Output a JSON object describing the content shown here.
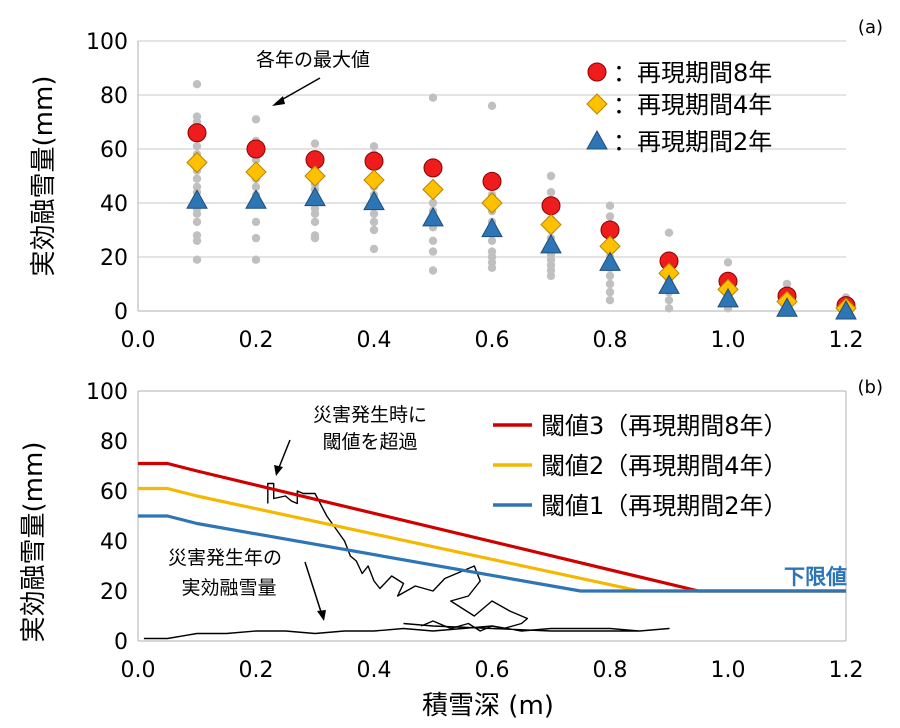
{
  "chart_data": [
    {
      "type": "scatter",
      "panel_label": "(a)",
      "title": "",
      "xlabel": "",
      "ylabel": "実効融雪量(mm)",
      "xlim": [
        0.0,
        1.2
      ],
      "ylim": [
        0,
        100
      ],
      "x_ticks": [
        "0.0",
        "0.2",
        "0.4",
        "0.6",
        "0.8",
        "1.0",
        "1.2"
      ],
      "y_ticks": [
        "0",
        "20",
        "40",
        "60",
        "80",
        "100"
      ],
      "grid": "horizontal",
      "legend_position": "top-right",
      "annotation": "各年の最大値",
      "series": [
        {
          "name": "：再現期間8年",
          "color": "#ee1c1c",
          "marker": "circle",
          "x": [
            0.1,
            0.2,
            0.3,
            0.4,
            0.5,
            0.6,
            0.7,
            0.8,
            0.9,
            1.0,
            1.1,
            1.2
          ],
          "values": [
            66,
            60,
            56,
            55.5,
            53,
            48,
            39,
            30,
            18.5,
            11,
            5.5,
            2
          ]
        },
        {
          "name": "：再現期間4年",
          "color": "#ffc000",
          "marker": "diamond",
          "x": [
            0.1,
            0.2,
            0.3,
            0.4,
            0.5,
            0.6,
            0.7,
            0.8,
            0.9,
            1.0,
            1.1,
            1.2
          ],
          "values": [
            55,
            51.5,
            50,
            48.5,
            45,
            40,
            32,
            24,
            14,
            8,
            3.5,
            1
          ]
        },
        {
          "name": "：再現期間2年",
          "color": "#2e75b6",
          "marker": "triangle",
          "x": [
            0.1,
            0.2,
            0.3,
            0.4,
            0.5,
            0.6,
            0.7,
            0.8,
            0.9,
            1.0,
            1.1,
            1.2
          ],
          "values": [
            41,
            41,
            42,
            40.5,
            34.5,
            30.5,
            24.5,
            18,
            9.5,
            4.5,
            1,
            0
          ]
        }
      ],
      "annual_max_points": [
        [
          0.1,
          84
        ],
        [
          0.1,
          72
        ],
        [
          0.1,
          70
        ],
        [
          0.1,
          64
        ],
        [
          0.1,
          61
        ],
        [
          0.1,
          58
        ],
        [
          0.1,
          52
        ],
        [
          0.1,
          49
        ],
        [
          0.1,
          46
        ],
        [
          0.1,
          44
        ],
        [
          0.1,
          38
        ],
        [
          0.1,
          36
        ],
        [
          0.1,
          33
        ],
        [
          0.1,
          28
        ],
        [
          0.1,
          26
        ],
        [
          0.1,
          19
        ],
        [
          0.2,
          71
        ],
        [
          0.2,
          63
        ],
        [
          0.2,
          56
        ],
        [
          0.2,
          53
        ],
        [
          0.2,
          49
        ],
        [
          0.2,
          46
        ],
        [
          0.2,
          43
        ],
        [
          0.2,
          40
        ],
        [
          0.2,
          33
        ],
        [
          0.2,
          27
        ],
        [
          0.2,
          19
        ],
        [
          0.3,
          62
        ],
        [
          0.3,
          58
        ],
        [
          0.3,
          53
        ],
        [
          0.3,
          47
        ],
        [
          0.3,
          45
        ],
        [
          0.3,
          43
        ],
        [
          0.3,
          38
        ],
        [
          0.3,
          36
        ],
        [
          0.3,
          33
        ],
        [
          0.3,
          28
        ],
        [
          0.3,
          27
        ],
        [
          0.4,
          61
        ],
        [
          0.4,
          58
        ],
        [
          0.4,
          50
        ],
        [
          0.4,
          46
        ],
        [
          0.4,
          43
        ],
        [
          0.4,
          39
        ],
        [
          0.4,
          36
        ],
        [
          0.4,
          33
        ],
        [
          0.4,
          30
        ],
        [
          0.4,
          23
        ],
        [
          0.5,
          79
        ],
        [
          0.5,
          51
        ],
        [
          0.5,
          45
        ],
        [
          0.5,
          40
        ],
        [
          0.5,
          37
        ],
        [
          0.5,
          33
        ],
        [
          0.5,
          31
        ],
        [
          0.5,
          26
        ],
        [
          0.5,
          22
        ],
        [
          0.5,
          15
        ],
        [
          0.6,
          76
        ],
        [
          0.6,
          50
        ],
        [
          0.6,
          43
        ],
        [
          0.6,
          37
        ],
        [
          0.6,
          33
        ],
        [
          0.6,
          29
        ],
        [
          0.6,
          26
        ],
        [
          0.6,
          22
        ],
        [
          0.6,
          20
        ],
        [
          0.6,
          18
        ],
        [
          0.6,
          16
        ],
        [
          0.7,
          50
        ],
        [
          0.7,
          44
        ],
        [
          0.7,
          38
        ],
        [
          0.7,
          34
        ],
        [
          0.7,
          30
        ],
        [
          0.7,
          27
        ],
        [
          0.7,
          24
        ],
        [
          0.7,
          21
        ],
        [
          0.7,
          19
        ],
        [
          0.7,
          17
        ],
        [
          0.7,
          15
        ],
        [
          0.7,
          13
        ],
        [
          0.8,
          39
        ],
        [
          0.8,
          35
        ],
        [
          0.8,
          28
        ],
        [
          0.8,
          23
        ],
        [
          0.8,
          20
        ],
        [
          0.8,
          16
        ],
        [
          0.8,
          13
        ],
        [
          0.8,
          10
        ],
        [
          0.8,
          7
        ],
        [
          0.8,
          4
        ],
        [
          0.9,
          29
        ],
        [
          0.9,
          20
        ],
        [
          0.9,
          15
        ],
        [
          0.9,
          11
        ],
        [
          0.9,
          7
        ],
        [
          0.9,
          4
        ],
        [
          0.9,
          1
        ],
        [
          1.0,
          18
        ],
        [
          1.0,
          13
        ],
        [
          1.0,
          9
        ],
        [
          1.0,
          6
        ],
        [
          1.0,
          3
        ],
        [
          1.0,
          1
        ],
        [
          1.1,
          10
        ],
        [
          1.1,
          7
        ],
        [
          1.1,
          5
        ],
        [
          1.1,
          3
        ],
        [
          1.1,
          1
        ],
        [
          1.2,
          5
        ],
        [
          1.2,
          3
        ],
        [
          1.2,
          1
        ]
      ]
    },
    {
      "type": "line",
      "panel_label": "(b)",
      "title": "",
      "xlabel": "積雪深 (m)",
      "ylabel": "実効融雪量(mm)",
      "xlim": [
        0.0,
        1.2
      ],
      "ylim": [
        0,
        100
      ],
      "x_ticks": [
        "0.0",
        "0.2",
        "0.4",
        "0.6",
        "0.8",
        "1.0",
        "1.2"
      ],
      "y_ticks": [
        "0",
        "20",
        "40",
        "60",
        "80",
        "100"
      ],
      "grid": "none",
      "legend_position": "top-right",
      "annotations": [
        "災害発生時に",
        "閾値を超過",
        "災害発生年の",
        "実効融雪量",
        "下限値"
      ],
      "series": [
        {
          "name": "閾値3（再現期間8年）",
          "color": "#d00000",
          "x": [
            0.0,
            0.05,
            0.1,
            0.95,
            1.2
          ],
          "values": [
            71,
            71,
            68,
            20,
            20
          ]
        },
        {
          "name": "閾値2（再現期間4年）",
          "color": "#f5b800",
          "x": [
            0.0,
            0.05,
            0.1,
            0.85,
            1.2
          ],
          "values": [
            61,
            61,
            58,
            20,
            20
          ]
        },
        {
          "name": "閾値1（再現期間2年）",
          "color": "#2e75b6",
          "x": [
            0.0,
            0.05,
            0.1,
            0.75,
            1.2
          ],
          "values": [
            50,
            50,
            47,
            20,
            20
          ]
        },
        {
          "name": "",
          "color": "#000000",
          "x": [
            0.01,
            0.05,
            0.1,
            0.15,
            0.2,
            0.25,
            0.3,
            0.35,
            0.4,
            0.45,
            0.5,
            0.55,
            0.6,
            0.65,
            0.7,
            0.75,
            0.8,
            0.85,
            0.9,
            0.85,
            0.7,
            0.6,
            0.5,
            0.45
          ],
          "values": [
            1,
            1,
            3,
            3,
            4,
            4,
            3,
            4,
            4,
            5,
            4,
            5,
            6,
            4,
            5,
            5,
            5,
            4,
            5,
            4,
            4,
            5,
            6,
            7
          ]
        },
        {
          "name": "",
          "color": "#000000",
          "x": [
            0.22,
            0.22,
            0.23,
            0.23,
            0.25,
            0.26,
            0.27,
            0.27,
            0.28,
            0.3,
            0.32,
            0.35,
            0.36,
            0.37,
            0.38,
            0.39,
            0.4,
            0.41,
            0.43,
            0.45,
            0.44,
            0.47,
            0.5,
            0.52,
            0.55,
            0.57,
            0.58,
            0.56,
            0.53,
            0.55,
            0.57,
            0.6,
            0.63,
            0.66,
            0.65,
            0.62,
            0.6,
            0.58,
            0.56,
            0.53,
            0.5,
            0.48
          ],
          "values": [
            55,
            63,
            63,
            57,
            58,
            56,
            55,
            60,
            59,
            59,
            50,
            40,
            34,
            32,
            27,
            30,
            24,
            21,
            26,
            23,
            18,
            22,
            20,
            25,
            28,
            30,
            24,
            18,
            16,
            13,
            10,
            16,
            12,
            9,
            7,
            5,
            6,
            4,
            7,
            5,
            8,
            6
          ]
        }
      ]
    }
  ]
}
